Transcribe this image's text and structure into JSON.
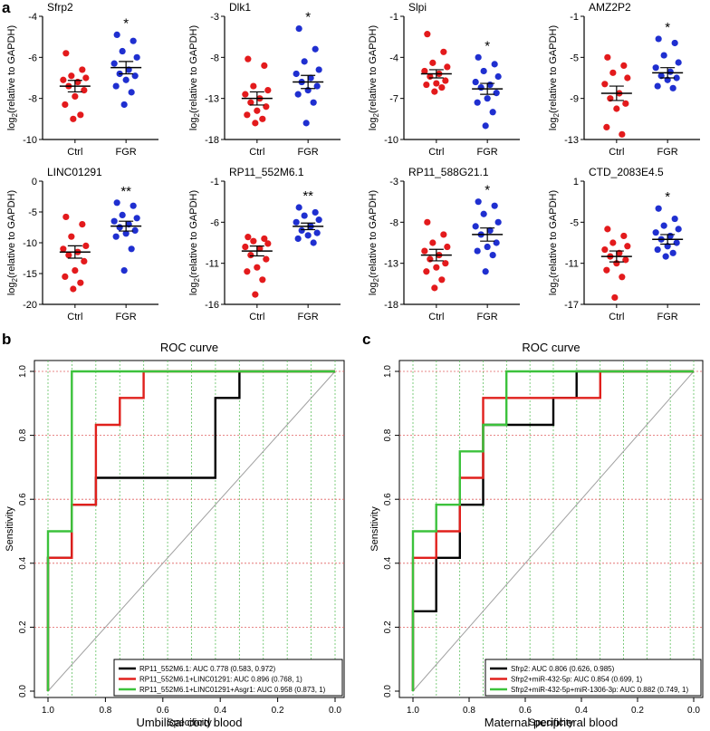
{
  "panel_labels": {
    "a": "a",
    "b": "b",
    "c": "c"
  },
  "colors": {
    "ctrl": "#e31a1c",
    "fgr": "#1f2fd0",
    "roc_black": "#000000",
    "roc_red": "#e0201c",
    "roc_green": "#3cc23c",
    "grid_red": "#e06060",
    "grid_green": "#60c060",
    "diagonal": "#a0a0a0"
  },
  "ylabel_main": "log",
  "ylabel_sub": "2",
  "ylabel_rest": "(relative to GAPDH)",
  "chart_data": [
    {
      "type": "scatter",
      "title": "Sfrp2",
      "categories": [
        "Ctrl",
        "FGR"
      ],
      "ylim": [
        -10,
        -4
      ],
      "yticks": [
        "-4",
        "-6",
        "-8",
        "-10"
      ],
      "significance": "*",
      "series": [
        {
          "name": "Ctrl",
          "values": [
            -5.8,
            -6.6,
            -6.9,
            -7.0,
            -7.1,
            -7.2,
            -7.4,
            -7.6,
            -7.9,
            -8.3,
            -8.8,
            -9.0
          ]
        },
        {
          "name": "FGR",
          "values": [
            -4.9,
            -5.2,
            -5.7,
            -6.0,
            -6.3,
            -6.6,
            -6.8,
            -6.9,
            -7.1,
            -7.4,
            -7.7,
            -8.3
          ]
        }
      ],
      "means": [
        -7.4,
        -6.5
      ],
      "sem": [
        0.28,
        0.3
      ]
    },
    {
      "type": "scatter",
      "title": "Dlk1",
      "categories": [
        "Ctrl",
        "FGR"
      ],
      "ylim": [
        -18,
        -3
      ],
      "yticks": [
        "-3",
        "-8",
        "-13",
        "-18"
      ],
      "significance": "*",
      "series": [
        {
          "name": "Ctrl",
          "values": [
            -8.2,
            -9.0,
            -11.5,
            -12.0,
            -12.5,
            -13.0,
            -13.5,
            -14.0,
            -14.5,
            -15.0,
            -15.5,
            -16.0
          ]
        },
        {
          "name": "FGR",
          "values": [
            -4.5,
            -7.0,
            -8.5,
            -9.5,
            -10.0,
            -10.5,
            -11.0,
            -11.5,
            -12.0,
            -12.5,
            -13.5,
            -16.0
          ]
        }
      ],
      "means": [
        -13.0,
        -11.0
      ],
      "sem": [
        0.8,
        0.8
      ]
    },
    {
      "type": "scatter",
      "title": "Slpi",
      "categories": [
        "Ctrl",
        "FGR"
      ],
      "ylim": [
        -10,
        -1
      ],
      "yticks": [
        "-1",
        "-4",
        "-7",
        "-10"
      ],
      "significance": "*",
      "series": [
        {
          "name": "Ctrl",
          "values": [
            -2.3,
            -3.6,
            -4.4,
            -4.7,
            -5.0,
            -5.2,
            -5.4,
            -5.7,
            -5.9,
            -6.0,
            -6.2,
            -6.5
          ]
        },
        {
          "name": "FGR",
          "values": [
            -4.0,
            -4.5,
            -5.0,
            -5.4,
            -5.8,
            -6.0,
            -6.2,
            -6.6,
            -7.0,
            -7.3,
            -8.0,
            -9.0
          ]
        }
      ],
      "means": [
        -5.2,
        -6.3
      ],
      "sem": [
        0.3,
        0.4
      ]
    },
    {
      "type": "scatter",
      "title": "AMZ2P2",
      "categories": [
        "Ctrl",
        "FGR"
      ],
      "ylim": [
        -13,
        -1
      ],
      "yticks": [
        "-1",
        "-5",
        "-9",
        "-13"
      ],
      "significance": "*",
      "series": [
        {
          "name": "Ctrl",
          "values": [
            -5.0,
            -5.8,
            -6.5,
            -7.0,
            -7.6,
            -8.5,
            -9.0,
            -9.5,
            -10.0,
            -11.8,
            -12.5
          ]
        },
        {
          "name": "FGR",
          "values": [
            -3.2,
            -3.6,
            -4.8,
            -5.5,
            -6.0,
            -6.4,
            -6.8,
            -7.0,
            -7.2,
            -7.8,
            -8.0
          ]
        }
      ],
      "means": [
        -8.5,
        -6.5
      ],
      "sem": [
        0.7,
        0.5
      ]
    },
    {
      "type": "scatter",
      "title": "LINC01291",
      "categories": [
        "Ctrl",
        "FGR"
      ],
      "ylim": [
        -20,
        0
      ],
      "yticks": [
        "0",
        "-5",
        "-10",
        "-15",
        "-20"
      ],
      "significance": "**",
      "series": [
        {
          "name": "Ctrl",
          "values": [
            -5.8,
            -7.0,
            -9.0,
            -10.5,
            -11.0,
            -11.5,
            -12.0,
            -13.0,
            -14.5,
            -15.5,
            -16.5,
            -17.5
          ]
        },
        {
          "name": "FGR",
          "values": [
            -3.5,
            -4.0,
            -5.5,
            -6.0,
            -6.5,
            -7.0,
            -7.5,
            -8.0,
            -8.5,
            -9.0,
            -11.0,
            -14.5
          ]
        }
      ],
      "means": [
        -11.5,
        -7.3
      ],
      "sem": [
        1.0,
        0.8
      ]
    },
    {
      "type": "scatter",
      "title": "RP11_552M6.1",
      "categories": [
        "Ctrl",
        "FGR"
      ],
      "ylim": [
        -16,
        -1
      ],
      "yticks": [
        "-1",
        "-6",
        "-11",
        "-16"
      ],
      "significance": "**",
      "series": [
        {
          "name": "Ctrl",
          "values": [
            -7.8,
            -8.0,
            -8.3,
            -8.6,
            -9.0,
            -9.2,
            -10.0,
            -10.5,
            -11.5,
            -12.0,
            -13.0,
            -14.8
          ]
        },
        {
          "name": "FGR",
          "values": [
            -4.2,
            -4.8,
            -5.2,
            -5.7,
            -6.0,
            -6.5,
            -7.0,
            -7.3,
            -7.6,
            -8.0,
            -8.5
          ]
        }
      ],
      "means": [
        -9.5,
        -6.5
      ],
      "sem": [
        0.6,
        0.4
      ]
    },
    {
      "type": "scatter",
      "title": "RP11_588G21.1",
      "categories": [
        "Ctrl",
        "FGR"
      ],
      "ylim": [
        -18,
        -3
      ],
      "yticks": [
        "-3",
        "-8",
        "-13",
        "-18"
      ],
      "significance": "*",
      "series": [
        {
          "name": "Ctrl",
          "values": [
            -8.0,
            -9.5,
            -10.5,
            -11.0,
            -11.5,
            -12.0,
            -12.5,
            -13.0,
            -13.5,
            -14.0,
            -15.0,
            -16.0
          ]
        },
        {
          "name": "FGR",
          "values": [
            -5.5,
            -6.0,
            -7.0,
            -8.0,
            -8.5,
            -9.0,
            -9.5,
            -10.5,
            -11.0,
            -11.5,
            -12.0,
            -14.0
          ]
        }
      ],
      "means": [
        -12.0,
        -9.5
      ],
      "sem": [
        0.7,
        0.8
      ]
    },
    {
      "type": "scatter",
      "title": "CTD_2083E4.5",
      "categories": [
        "Ctrl",
        "FGR"
      ],
      "ylim": [
        -17,
        1
      ],
      "yticks": [
        "1",
        "-5",
        "-11",
        "-17"
      ],
      "significance": "*",
      "series": [
        {
          "name": "Ctrl",
          "values": [
            -6.0,
            -7.0,
            -8.0,
            -8.5,
            -9.0,
            -9.5,
            -10.0,
            -10.5,
            -11.0,
            -12.0,
            -13.0,
            -16.0
          ]
        },
        {
          "name": "FGR",
          "values": [
            -3.0,
            -4.5,
            -5.5,
            -6.0,
            -6.5,
            -7.0,
            -7.5,
            -8.0,
            -8.5,
            -9.0,
            -9.5,
            -10.0
          ]
        }
      ],
      "means": [
        -10.0,
        -7.5
      ],
      "sem": [
        0.8,
        0.7
      ]
    },
    {
      "type": "line",
      "title": "ROC curve",
      "xlabel": "Specificity",
      "ylabel": "Sensitivity",
      "subtitle": "Umbilical cord blood",
      "xlim": [
        1,
        0
      ],
      "ylim": [
        0,
        1
      ],
      "xticks": [
        "1.0",
        "0.8",
        "0.6",
        "0.4",
        "0.2",
        "0.0"
      ],
      "yticks": [
        "0.0",
        "0.2",
        "0.4",
        "0.6",
        "0.8",
        "1.0"
      ],
      "grid": true,
      "legend_position": "bottom-right",
      "series": [
        {
          "name": "RP11_552M6.1: AUC 0.778 (0.583, 0.972)",
          "color": "#000000",
          "x": [
            1.0,
            1.0,
            0.917,
            0.917,
            0.833,
            0.833,
            0.417,
            0.417,
            0.333,
            0.333,
            0.0
          ],
          "y": [
            0.0,
            0.417,
            0.417,
            0.583,
            0.583,
            0.667,
            0.667,
            0.917,
            0.917,
            1.0,
            1.0
          ]
        },
        {
          "name": "RP11_552M6.1+LINC01291: AUC 0.896 (0.768, 1)",
          "color": "#e0201c",
          "x": [
            1.0,
            1.0,
            0.917,
            0.917,
            0.833,
            0.833,
            0.75,
            0.75,
            0.667,
            0.667,
            0.0
          ],
          "y": [
            0.0,
            0.417,
            0.417,
            0.583,
            0.583,
            0.833,
            0.833,
            0.917,
            0.917,
            1.0,
            1.0
          ]
        },
        {
          "name": "RP11_552M6.1+LINC01291+Asgr1: AUC 0.958 (0.873, 1)",
          "color": "#3cc23c",
          "x": [
            1.0,
            1.0,
            0.917,
            0.917,
            0.0
          ],
          "y": [
            0.0,
            0.5,
            0.5,
            1.0,
            1.0
          ]
        }
      ]
    },
    {
      "type": "line",
      "title": "ROC curve",
      "xlabel": "Specificity",
      "ylabel": "Sensitivity",
      "subtitle": "Maternal peripheral blood",
      "xlim": [
        1,
        0
      ],
      "ylim": [
        0,
        1
      ],
      "xticks": [
        "1.0",
        "0.8",
        "0.6",
        "0.4",
        "0.2",
        "0.0"
      ],
      "yticks": [
        "0.0",
        "0.2",
        "0.4",
        "0.6",
        "0.8",
        "1.0"
      ],
      "grid": true,
      "legend_position": "bottom-right",
      "series": [
        {
          "name": "Sfrp2: AUC 0.806 (0.626, 0.985)",
          "color": "#000000",
          "x": [
            1.0,
            1.0,
            0.917,
            0.917,
            0.833,
            0.833,
            0.75,
            0.75,
            0.5,
            0.5,
            0.417,
            0.417,
            0.0
          ],
          "y": [
            0.0,
            0.25,
            0.25,
            0.417,
            0.417,
            0.583,
            0.583,
            0.833,
            0.833,
            0.917,
            0.917,
            1.0,
            1.0
          ]
        },
        {
          "name": "Sfrp2+miR-432-5p: AUC 0.854 (0.699, 1)",
          "color": "#e0201c",
          "x": [
            1.0,
            1.0,
            0.917,
            0.917,
            0.833,
            0.833,
            0.75,
            0.75,
            0.667,
            0.667,
            0.333,
            0.333,
            0.0
          ],
          "y": [
            0.0,
            0.417,
            0.417,
            0.5,
            0.5,
            0.667,
            0.667,
            0.917,
            0.917,
            0.917,
            0.917,
            1.0,
            1.0
          ]
        },
        {
          "name": "Sfrp2+miR-432-5p+miR-1306-3p: AUC 0.882 (0.749, 1)",
          "color": "#3cc23c",
          "x": [
            1.0,
            1.0,
            0.917,
            0.917,
            0.833,
            0.833,
            0.75,
            0.75,
            0.667,
            0.667,
            0.0
          ],
          "y": [
            0.0,
            0.5,
            0.5,
            0.583,
            0.583,
            0.75,
            0.75,
            0.833,
            0.833,
            1.0,
            1.0
          ]
        }
      ]
    }
  ]
}
